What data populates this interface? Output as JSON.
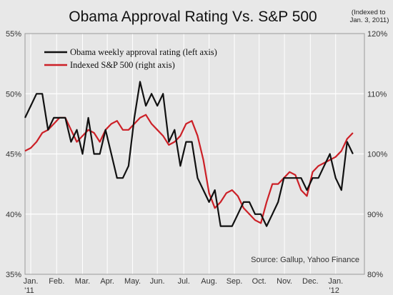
{
  "chart_data": {
    "type": "line",
    "title": "Obama Approval Rating Vs. S&P 500",
    "note_lines": [
      "(Indexed to",
      "Jan. 3, 2011)"
    ],
    "source": "Source: Gallup, Yahoo Finance",
    "x_labels": [
      {
        "text": "Jan.",
        "week": 1
      },
      {
        "text": "Feb.",
        "week": 5.5
      },
      {
        "text": "Mar.",
        "week": 10
      },
      {
        "text": "Apr.",
        "week": 14.3
      },
      {
        "text": "May.",
        "week": 18.7
      },
      {
        "text": "Jun.",
        "week": 23
      },
      {
        "text": "Jul.",
        "week": 27.6
      },
      {
        "text": "Aug.",
        "week": 32
      },
      {
        "text": "Sep.",
        "week": 36.4
      },
      {
        "text": "Oct.",
        "week": 40.7
      },
      {
        "text": "Nov.",
        "week": 45.1
      },
      {
        "text": "Dec.",
        "week": 49.6
      },
      {
        "text": "Jan.",
        "week": 54
      }
    ],
    "x_sub_labels": [
      {
        "text": "'11",
        "week": 1
      },
      {
        "text": "'12",
        "week": 54
      }
    ],
    "x_range": [
      0,
      59
    ],
    "y_left": {
      "ticks": [
        "55%",
        "50%",
        "45%",
        "40%",
        "35%"
      ],
      "values": [
        55,
        50,
        45,
        40,
        35
      ],
      "range": [
        35,
        55
      ]
    },
    "y_right": {
      "ticks": [
        "120%",
        "110%",
        "100%",
        "90%",
        "80%"
      ],
      "values": [
        120,
        110,
        100,
        90,
        80
      ],
      "range": [
        80,
        120
      ]
    },
    "grid": true,
    "legend_position": "top-left",
    "colors": {
      "approval": "#111111",
      "sp500": "#cc2027",
      "grid": "#ffffff"
    },
    "series": [
      {
        "name": "Obama weekly approval rating (left axis)",
        "axis": "left",
        "x": [
          0,
          1,
          2,
          3,
          4,
          5,
          6,
          7,
          8,
          9,
          10,
          11,
          12,
          13,
          14,
          15,
          16,
          17,
          18,
          19,
          20,
          21,
          22,
          23,
          24,
          25,
          26,
          27,
          28,
          29,
          30,
          31,
          32,
          33,
          34,
          35,
          36,
          37,
          38,
          39,
          40,
          41,
          42,
          43,
          44,
          45,
          46,
          47,
          48,
          49,
          50,
          51,
          52,
          53,
          54,
          55,
          56,
          57
        ],
        "values": [
          48,
          49,
          50,
          50,
          47,
          48,
          48,
          48,
          46,
          47,
          45,
          48,
          45,
          45,
          47,
          45,
          43,
          43,
          44,
          48,
          51,
          49,
          50,
          49,
          50,
          46,
          47,
          44,
          46,
          46,
          43,
          42,
          41,
          42,
          39,
          39,
          39,
          40,
          41,
          41,
          40,
          40,
          39,
          40,
          41,
          43,
          43,
          43,
          43,
          42,
          43,
          43,
          44,
          45,
          43,
          42,
          46,
          45
        ],
        "y_left_values_note": ""
      },
      {
        "name": "Indexed S&P 500 (right axis)",
        "axis": "right",
        "x": [
          0,
          1,
          2,
          3,
          4,
          5,
          6,
          7,
          8,
          9,
          10,
          11,
          12,
          13,
          14,
          15,
          16,
          17,
          18,
          19,
          20,
          21,
          22,
          23,
          24,
          25,
          26,
          27,
          28,
          29,
          30,
          31,
          32,
          33,
          34,
          35,
          36,
          37,
          38,
          39,
          40,
          41,
          42,
          43,
          44,
          45,
          46,
          47,
          48,
          49,
          50,
          51,
          52,
          53,
          54,
          55,
          56,
          57
        ],
        "values": [
          100.5,
          101,
          102,
          103.5,
          104,
          105,
          106,
          106,
          104,
          102,
          103,
          104,
          103.5,
          102,
          104,
          105,
          105.5,
          104,
          104,
          105,
          106,
          106.5,
          105,
          104,
          103,
          101.5,
          102,
          103,
          105,
          105.5,
          103,
          99,
          93.5,
          91,
          92,
          93.5,
          94,
          93,
          91,
          90,
          89,
          88.5,
          92,
          95,
          95,
          96,
          97,
          96.5,
          94,
          93,
          97,
          98,
          98.5,
          99,
          99.5,
          100.5,
          102.5,
          103.5
        ]
      }
    ]
  }
}
